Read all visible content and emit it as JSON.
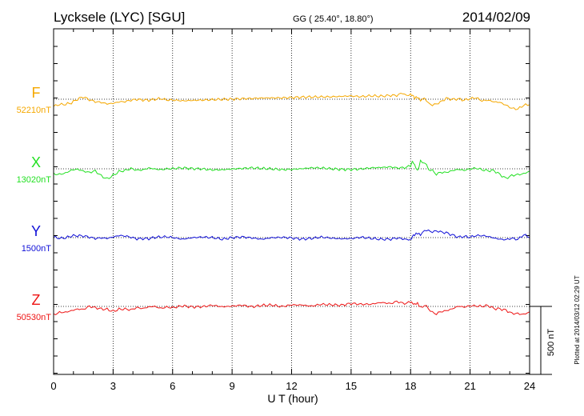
{
  "header": {
    "station": "Lycksele (LYC)  [SGU]",
    "coords": "GG ( 25.40°,  18.80°)",
    "date": "2014/02/09"
  },
  "footer": {
    "plotted": "Plotted at 2014/03/12 02:29 UT"
  },
  "chart_data": {
    "type": "line",
    "xlabel": "U T (hour)",
    "xlim": [
      0,
      24
    ],
    "xticks": [
      "0",
      "3",
      "6",
      "9",
      "12",
      "15",
      "18",
      "21",
      "24"
    ],
    "scale_bar_label": "500 nT",
    "grid": true,
    "series": [
      {
        "name": "F",
        "baseline_label": "52210nT",
        "color": "#f5a800",
        "x": [
          0,
          0.3,
          0.6,
          0.9,
          1.2,
          1.5,
          1.8,
          2.1,
          2.4,
          2.7,
          3.0,
          3.3,
          3.6,
          3.9,
          4.2,
          4.5,
          4.8,
          5.1,
          5.4,
          5.7,
          6.0,
          6.5,
          7.0,
          7.5,
          8.0,
          8.5,
          9.0,
          9.5,
          10.0,
          10.5,
          11.0,
          11.5,
          12.0,
          12.5,
          13.0,
          13.5,
          14.0,
          14.5,
          15.0,
          15.5,
          16.0,
          16.5,
          17.0,
          17.3,
          17.6,
          17.8,
          18.0,
          18.1,
          18.2,
          18.35,
          18.5,
          18.7,
          18.9,
          19.1,
          19.3,
          19.5,
          19.8,
          20.1,
          20.4,
          20.7,
          21.0,
          21.3,
          21.6,
          21.9,
          22.2,
          22.5,
          22.8,
          23.1,
          23.4,
          23.7,
          24.0
        ],
        "y": [
          -55,
          -45,
          -35,
          -20,
          0,
          10,
          -5,
          -12,
          -20,
          -40,
          -35,
          -15,
          -12,
          -10,
          -8,
          -5,
          0,
          0,
          -2,
          -8,
          0,
          -5,
          -2,
          0,
          2,
          3,
          2,
          4,
          3,
          5,
          4,
          3,
          5,
          8,
          10,
          12,
          15,
          20,
          25,
          22,
          30,
          28,
          35,
          30,
          40,
          25,
          45,
          20,
          10,
          25,
          -5,
          15,
          -30,
          -50,
          -40,
          -20,
          0,
          -5,
          8,
          -2,
          0,
          5,
          -10,
          0,
          -20,
          -30,
          -45,
          -60,
          -70,
          -50,
          -45
        ]
      },
      {
        "name": "X",
        "baseline_label": "13020nT",
        "color": "#22e022",
        "x": [
          0,
          0.3,
          0.6,
          0.9,
          1.2,
          1.5,
          1.8,
          2.1,
          2.4,
          2.7,
          3.0,
          3.3,
          3.6,
          3.9,
          4.2,
          4.5,
          4.8,
          5.1,
          5.4,
          5.7,
          6.0,
          6.5,
          7.0,
          7.5,
          8.0,
          8.5,
          9.0,
          9.5,
          10.0,
          10.5,
          11.0,
          11.5,
          12.0,
          12.5,
          13.0,
          13.5,
          14.0,
          14.5,
          15.0,
          15.5,
          16.0,
          16.5,
          17.0,
          17.3,
          17.6,
          17.8,
          18.0,
          18.1,
          18.2,
          18.35,
          18.5,
          18.7,
          18.9,
          19.1,
          19.3,
          19.5,
          19.8,
          20.1,
          20.4,
          20.7,
          21.0,
          21.3,
          21.6,
          21.9,
          22.2,
          22.5,
          22.8,
          23.1,
          23.4,
          23.7,
          24.0
        ],
        "y": [
          -45,
          -40,
          -25,
          -15,
          -5,
          -10,
          -30,
          -20,
          -45,
          -75,
          -55,
          -15,
          -10,
          -5,
          -8,
          -3,
          0,
          -2,
          0,
          -5,
          -2,
          0,
          -3,
          0,
          -2,
          -1,
          0,
          -2,
          0,
          -1,
          2,
          0,
          1,
          0,
          2,
          0,
          -2,
          0,
          2,
          3,
          5,
          3,
          8,
          5,
          15,
          5,
          30,
          60,
          20,
          -10,
          60,
          40,
          5,
          -20,
          -35,
          -30,
          -20,
          -15,
          -10,
          -5,
          0,
          -2,
          -3,
          -10,
          -20,
          -40,
          -65,
          -55,
          -45,
          -30,
          -20
        ]
      },
      {
        "name": "Y",
        "baseline_label": "1500nT",
        "color": "#1010d8",
        "x": [
          0,
          0.3,
          0.6,
          0.9,
          1.2,
          1.5,
          1.8,
          2.1,
          2.4,
          2.7,
          3.0,
          3.3,
          3.6,
          3.9,
          4.2,
          4.5,
          4.8,
          5.1,
          5.4,
          5.7,
          6.0,
          6.5,
          7.0,
          7.5,
          8.0,
          8.5,
          9.0,
          9.5,
          10.0,
          10.5,
          11.0,
          11.5,
          12.0,
          12.5,
          13.0,
          13.5,
          14.0,
          14.5,
          15.0,
          15.5,
          16.0,
          16.5,
          17.0,
          17.3,
          17.6,
          17.8,
          18.0,
          18.1,
          18.2,
          18.35,
          18.5,
          18.7,
          18.9,
          19.1,
          19.3,
          19.5,
          19.8,
          20.1,
          20.4,
          20.7,
          21.0,
          21.3,
          21.6,
          21.9,
          22.2,
          22.5,
          22.8,
          23.1,
          23.4,
          23.7,
          24.0
        ],
        "y": [
          5,
          0,
          5,
          15,
          10,
          5,
          0,
          -5,
          5,
          0,
          5,
          10,
          5,
          0,
          -5,
          0,
          -3,
          0,
          -2,
          0,
          0,
          -5,
          0,
          -3,
          0,
          -5,
          0,
          -2,
          -3,
          -5,
          0,
          -5,
          -3,
          -4,
          -5,
          -3,
          -5,
          -2,
          -6,
          -4,
          -7,
          -5,
          -10,
          -8,
          -15,
          -20,
          -15,
          10,
          20,
          30,
          25,
          60,
          55,
          40,
          45,
          35,
          30,
          20,
          10,
          15,
          5,
          10,
          8,
          5,
          0,
          -5,
          -10,
          -5,
          -20,
          15,
          0
        ]
      },
      {
        "name": "Z",
        "baseline_label": "50530nT",
        "color": "#ee1515",
        "x": [
          0,
          0.3,
          0.6,
          0.9,
          1.2,
          1.5,
          1.8,
          2.1,
          2.4,
          2.7,
          3.0,
          3.3,
          3.6,
          3.9,
          4.2,
          4.5,
          4.8,
          5.1,
          5.4,
          5.7,
          6.0,
          6.5,
          7.0,
          7.5,
          8.0,
          8.5,
          9.0,
          9.5,
          10.0,
          10.5,
          11.0,
          11.5,
          12.0,
          12.5,
          13.0,
          13.5,
          14.0,
          14.5,
          15.0,
          15.5,
          16.0,
          16.5,
          17.0,
          17.3,
          17.6,
          17.8,
          18.0,
          18.1,
          18.2,
          18.35,
          18.5,
          18.7,
          18.9,
          19.1,
          19.3,
          19.5,
          19.8,
          20.1,
          20.4,
          20.7,
          21.0,
          21.3,
          21.6,
          21.9,
          22.2,
          22.5,
          22.8,
          23.1,
          23.4,
          23.7,
          24.0
        ],
        "y": [
          -55,
          -50,
          -40,
          -30,
          -25,
          -15,
          -5,
          -8,
          -15,
          -28,
          -30,
          -25,
          -20,
          -20,
          -15,
          -10,
          -5,
          -3,
          -8,
          -12,
          -5,
          -3,
          0,
          0,
          2,
          3,
          2,
          3,
          4,
          5,
          6,
          6,
          7,
          8,
          9,
          10,
          12,
          14,
          15,
          18,
          20,
          22,
          25,
          30,
          30,
          25,
          30,
          15,
          10,
          20,
          -5,
          5,
          -20,
          -40,
          -50,
          -45,
          -30,
          -15,
          -5,
          2,
          0,
          3,
          5,
          0,
          -10,
          -20,
          -30,
          -45,
          -60,
          -55,
          -40
        ]
      }
    ]
  }
}
